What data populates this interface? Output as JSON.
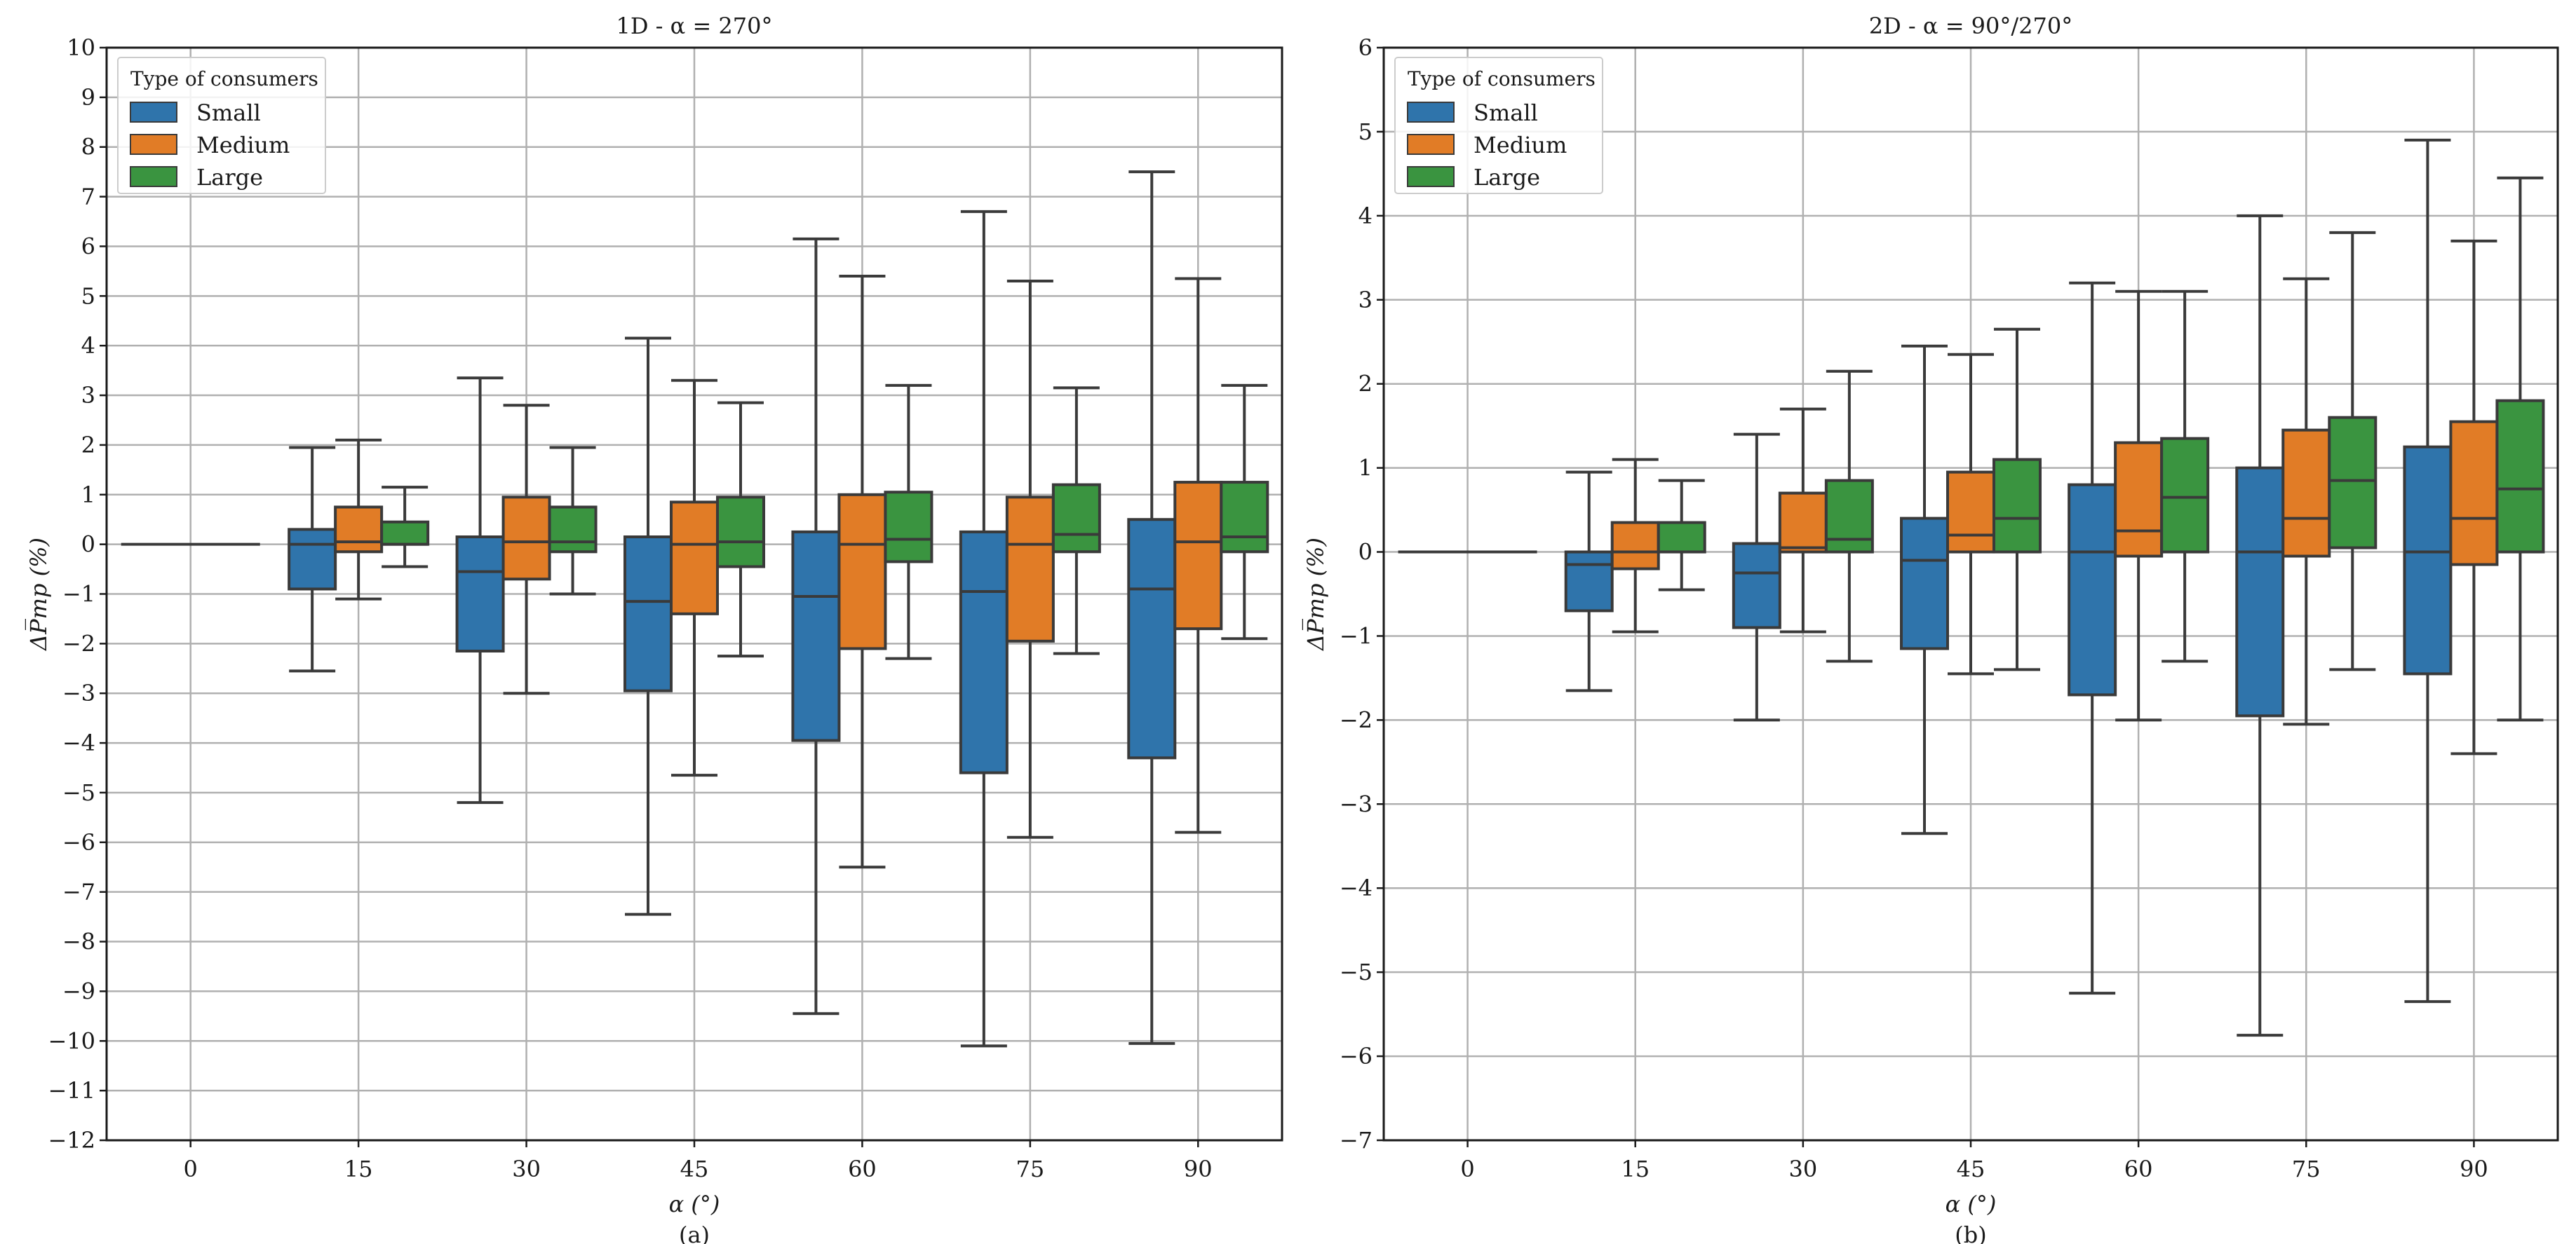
{
  "chart_data": [
    {
      "type": "box",
      "title": "1D - α = 270°",
      "xlabel": "α (°)",
      "ylabel": "ΔP̅mp (%)",
      "caption": "(a)",
      "categories": [
        "0",
        "15",
        "30",
        "45",
        "60",
        "75",
        "90"
      ],
      "ylim": [
        -12,
        10
      ],
      "yticks": [
        -12,
        -11,
        -10,
        -9,
        -8,
        -7,
        -6,
        -5,
        -4,
        -3,
        -2,
        -1,
        0,
        1,
        2,
        3,
        4,
        5,
        6,
        7,
        8,
        9,
        10
      ],
      "ytick_labels": [
        "−12",
        "−11",
        "−10",
        "−9",
        "−8",
        "−7",
        "−6",
        "−5",
        "−4",
        "−3",
        "−2",
        "−1",
        "0",
        "1",
        "2",
        "3",
        "4",
        "5",
        "6",
        "7",
        "8",
        "9",
        "10"
      ],
      "grid": true,
      "legend": {
        "title": "Type of consumers",
        "position": "top-left"
      },
      "series": [
        {
          "name": "Small",
          "color": "#2f74ab",
          "boxes": [
            {
              "whislo": 0,
              "q1": 0,
              "med": 0,
              "q3": 0,
              "whishi": 0
            },
            {
              "whislo": -2.55,
              "q1": -0.9,
              "med": 0.0,
              "q3": 0.3,
              "whishi": 1.95
            },
            {
              "whislo": -5.2,
              "q1": -2.15,
              "med": -0.55,
              "q3": 0.15,
              "whishi": 3.35
            },
            {
              "whislo": -7.45,
              "q1": -2.95,
              "med": -1.15,
              "q3": 0.15,
              "whishi": 4.15
            },
            {
              "whislo": -9.45,
              "q1": -3.95,
              "med": -1.05,
              "q3": 0.25,
              "whishi": 6.15
            },
            {
              "whislo": -10.1,
              "q1": -4.6,
              "med": -0.95,
              "q3": 0.25,
              "whishi": 6.7
            },
            {
              "whislo": -10.05,
              "q1": -4.3,
              "med": -0.9,
              "q3": 0.5,
              "whishi": 7.5
            }
          ]
        },
        {
          "name": "Medium",
          "color": "#e17c26",
          "boxes": [
            null,
            {
              "whislo": -1.1,
              "q1": -0.15,
              "med": 0.05,
              "q3": 0.75,
              "whishi": 2.1
            },
            {
              "whislo": -3.0,
              "q1": -0.7,
              "med": 0.05,
              "q3": 0.95,
              "whishi": 2.8
            },
            {
              "whislo": -4.65,
              "q1": -1.4,
              "med": 0.0,
              "q3": 0.85,
              "whishi": 3.3
            },
            {
              "whislo": -6.5,
              "q1": -2.1,
              "med": 0.0,
              "q3": 1.0,
              "whishi": 5.4
            },
            {
              "whislo": -5.9,
              "q1": -1.95,
              "med": 0.0,
              "q3": 0.95,
              "whishi": 5.3
            },
            {
              "whislo": -5.8,
              "q1": -1.7,
              "med": 0.05,
              "q3": 1.25,
              "whishi": 5.35
            }
          ]
        },
        {
          "name": "Large",
          "color": "#3a9440",
          "boxes": [
            null,
            {
              "whislo": -0.45,
              "q1": 0.0,
              "med": 0.0,
              "q3": 0.45,
              "whishi": 1.15
            },
            {
              "whislo": -1.0,
              "q1": -0.15,
              "med": 0.05,
              "q3": 0.75,
              "whishi": 1.95
            },
            {
              "whislo": -2.25,
              "q1": -0.45,
              "med": 0.05,
              "q3": 0.95,
              "whishi": 2.85
            },
            {
              "whislo": -2.3,
              "q1": -0.35,
              "med": 0.1,
              "q3": 1.05,
              "whishi": 3.2
            },
            {
              "whislo": -2.2,
              "q1": -0.15,
              "med": 0.2,
              "q3": 1.2,
              "whishi": 3.15
            },
            {
              "whislo": -1.9,
              "q1": -0.15,
              "med": 0.15,
              "q3": 1.25,
              "whishi": 3.2
            }
          ]
        }
      ]
    },
    {
      "type": "box",
      "title": "2D - α = 90°/270°",
      "xlabel": "α (°)",
      "ylabel": "ΔP̅mp (%)",
      "caption": "(b)",
      "categories": [
        "0",
        "15",
        "30",
        "45",
        "60",
        "75",
        "90"
      ],
      "ylim": [
        -7,
        6
      ],
      "yticks": [
        -7,
        -6,
        -5,
        -4,
        -3,
        -2,
        -1,
        0,
        1,
        2,
        3,
        4,
        5,
        6
      ],
      "ytick_labels": [
        "−7",
        "−6",
        "−5",
        "−4",
        "−3",
        "−2",
        "−1",
        "0",
        "1",
        "2",
        "3",
        "4",
        "5",
        "6"
      ],
      "grid": true,
      "legend": {
        "title": "Type of consumers",
        "position": "top-left"
      },
      "series": [
        {
          "name": "Small",
          "color": "#2f74ab",
          "boxes": [
            {
              "whislo": 0,
              "q1": 0,
              "med": 0,
              "q3": 0,
              "whishi": 0
            },
            {
              "whislo": -1.65,
              "q1": -0.7,
              "med": -0.15,
              "q3": 0.0,
              "whishi": 0.95
            },
            {
              "whislo": -2.0,
              "q1": -0.9,
              "med": -0.25,
              "q3": 0.1,
              "whishi": 1.4
            },
            {
              "whislo": -3.35,
              "q1": -1.15,
              "med": -0.1,
              "q3": 0.4,
              "whishi": 2.45
            },
            {
              "whislo": -5.25,
              "q1": -1.7,
              "med": 0.0,
              "q3": 0.8,
              "whishi": 3.2
            },
            {
              "whislo": -5.75,
              "q1": -1.95,
              "med": 0.0,
              "q3": 1.0,
              "whishi": 4.0
            },
            {
              "whislo": -5.35,
              "q1": -1.45,
              "med": 0.0,
              "q3": 1.25,
              "whishi": 4.9
            }
          ]
        },
        {
          "name": "Medium",
          "color": "#e17c26",
          "boxes": [
            null,
            {
              "whislo": -0.95,
              "q1": -0.2,
              "med": 0.0,
              "q3": 0.35,
              "whishi": 1.1
            },
            {
              "whislo": -0.95,
              "q1": 0.0,
              "med": 0.05,
              "q3": 0.7,
              "whishi": 1.7
            },
            {
              "whislo": -1.45,
              "q1": 0.0,
              "med": 0.2,
              "q3": 0.95,
              "whishi": 2.35
            },
            {
              "whislo": -2.0,
              "q1": -0.05,
              "med": 0.25,
              "q3": 1.3,
              "whishi": 3.1
            },
            {
              "whislo": -2.05,
              "q1": -0.05,
              "med": 0.4,
              "q3": 1.45,
              "whishi": 3.25
            },
            {
              "whislo": -2.4,
              "q1": -0.15,
              "med": 0.4,
              "q3": 1.55,
              "whishi": 3.7
            }
          ]
        },
        {
          "name": "Large",
          "color": "#3a9440",
          "boxes": [
            null,
            {
              "whislo": -0.45,
              "q1": 0.0,
              "med": 0.0,
              "q3": 0.35,
              "whishi": 0.85
            },
            {
              "whislo": -1.3,
              "q1": 0.0,
              "med": 0.15,
              "q3": 0.85,
              "whishi": 2.15
            },
            {
              "whislo": -1.4,
              "q1": 0.0,
              "med": 0.4,
              "q3": 1.1,
              "whishi": 2.65
            },
            {
              "whislo": -1.3,
              "q1": 0.0,
              "med": 0.65,
              "q3": 1.35,
              "whishi": 3.1
            },
            {
              "whislo": -1.4,
              "q1": 0.05,
              "med": 0.85,
              "q3": 1.6,
              "whishi": 3.8
            },
            {
              "whislo": -2.0,
              "q1": 0.0,
              "med": 0.75,
              "q3": 1.8,
              "whishi": 4.45
            }
          ]
        }
      ]
    }
  ]
}
